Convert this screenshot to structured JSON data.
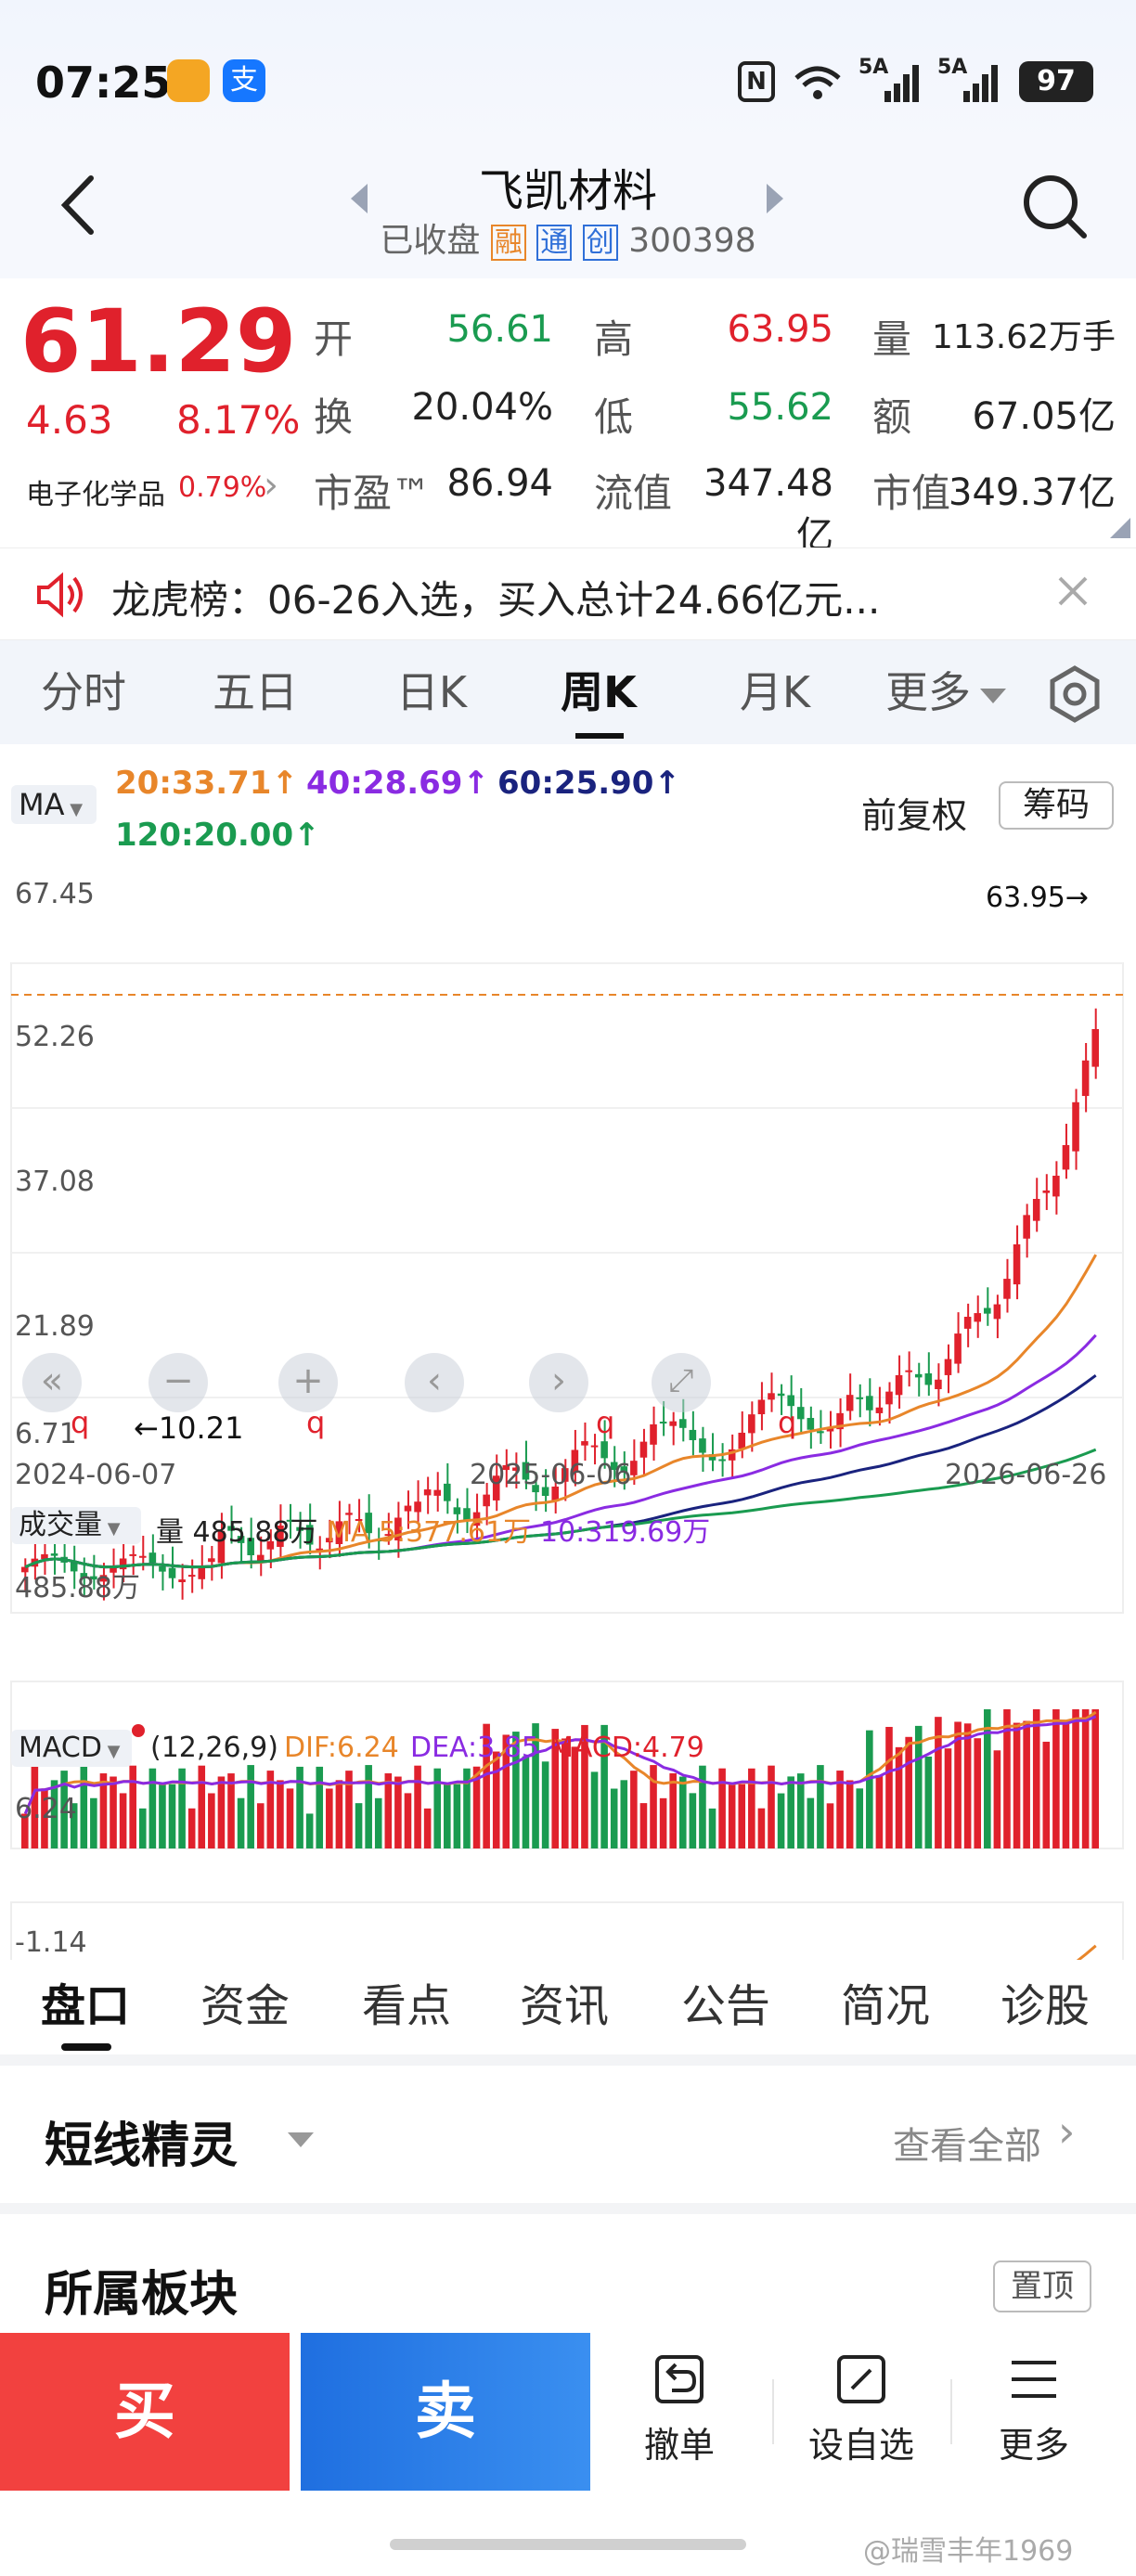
{
  "status": {
    "time": "07:25",
    "battery": "97",
    "net1": "5A",
    "net2": "5A",
    "wifi": "6"
  },
  "header": {
    "title": "飞凯材料",
    "status": "已收盘",
    "badge1": "融",
    "badge2": "通",
    "badge3": "创",
    "code": "300398"
  },
  "quote": {
    "price": "61.29",
    "change": "4.63",
    "change_pct": "8.17%",
    "sector": "电子化学品",
    "sector_pct": "0.79%",
    "open_label": "开",
    "open": "56.61",
    "high_label": "高",
    "high": "63.95",
    "volume_label": "量",
    "volume": "113.62万手",
    "turnover_label": "换",
    "turnover": "20.04%",
    "low_label": "低",
    "low": "55.62",
    "amount_label": "额",
    "amount": "67.05亿",
    "pe_label": "市盈™",
    "pe": "86.94",
    "float_label": "流值",
    "float": "347.48亿",
    "mcap_label": "市值",
    "mcap": "349.37亿"
  },
  "notice": {
    "text": "龙虎榜：06-26入选，买入总计24.66亿元..."
  },
  "tabs": [
    "分时",
    "五日",
    "日K",
    "周K",
    "月K",
    "更多"
  ],
  "chart": {
    "ma_selector": "MA",
    "ma20": "20:33.71↑",
    "ma40": "40:28.69↑",
    "ma60": "60:25.90↑",
    "ma120": "120:20.00↑",
    "adjust": "前复权",
    "chips": "筹码",
    "y_labels": [
      "67.45",
      "52.26",
      "37.08",
      "21.89",
      "6.71"
    ],
    "max_label": "63.95→",
    "min_label": "←10.21",
    "dates": [
      "2024-06-07",
      "2025-06-06",
      "2026-06-26"
    ],
    "vol_selector": "成交量",
    "vol_text": "量 485.88万",
    "vol_ma5": "MA 5:377.61万",
    "vol_ma10": "10:319.69万",
    "vol_axis": "485.88万",
    "macd_selector": "MACD",
    "macd_params": "(12,26,9)",
    "dif": "DIF:6.24",
    "dea": "DEA:3.85",
    "macd": "MACD:4.79",
    "macd_top": "6.24",
    "macd_bottom": "-1.14",
    "marker": "q"
  },
  "subtabs": [
    "盘口",
    "资金",
    "看点",
    "资讯",
    "公告",
    "简况",
    "诊股"
  ],
  "section1": {
    "title": "短线精灵",
    "link": "查看全部"
  },
  "section2": {
    "title": "所属板块",
    "button": "置顶"
  },
  "bottom": {
    "buy": "买",
    "sell": "卖",
    "cancel": "撤单",
    "watch": "设自选",
    "more": "更多"
  },
  "watermark": "@瑞雪丰年1969",
  "colors": {
    "up": "#e0212c",
    "down": "#1a9b50",
    "ma20": "#e8862a",
    "ma40": "#8a2be2",
    "ma60": "#1a237e",
    "ma120": "#1a9b50"
  }
}
